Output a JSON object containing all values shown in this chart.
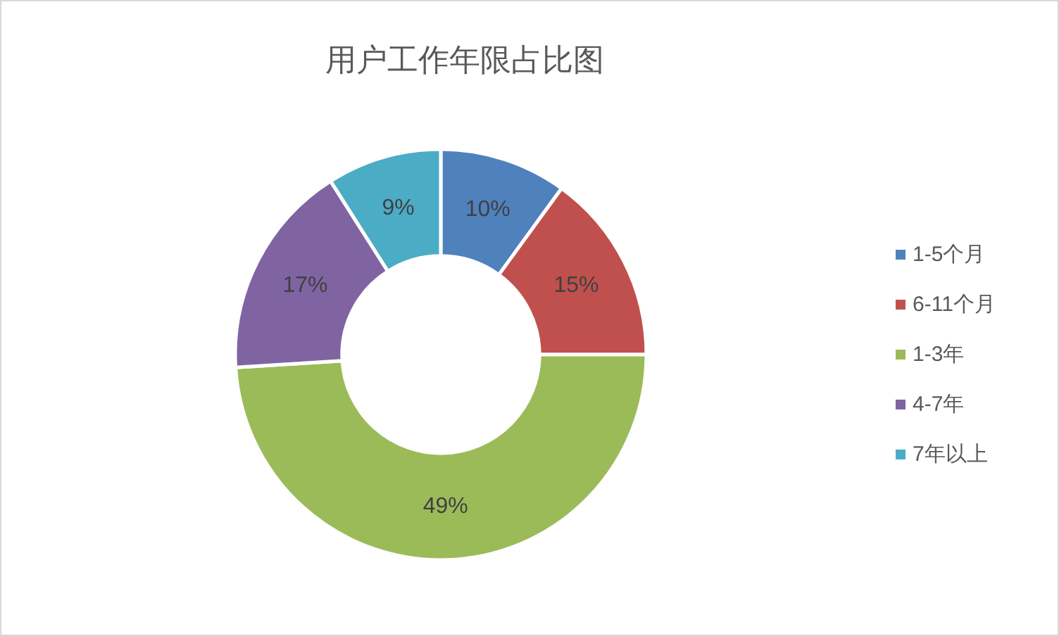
{
  "chart_data": {
    "type": "donut",
    "title": "用户工作年限占比图",
    "categories": [
      "1-5个月",
      "6-11个月",
      "1-3年",
      "4-7年",
      "7年以上"
    ],
    "values": [
      10,
      15,
      49,
      17,
      9
    ],
    "colors": [
      "#4f81bd",
      "#c0504d",
      "#9bbb59",
      "#8064a2",
      "#4bacc6"
    ],
    "value_labels": [
      "10%",
      "15%",
      "49%",
      "17%",
      "9%"
    ],
    "legend": "right"
  }
}
